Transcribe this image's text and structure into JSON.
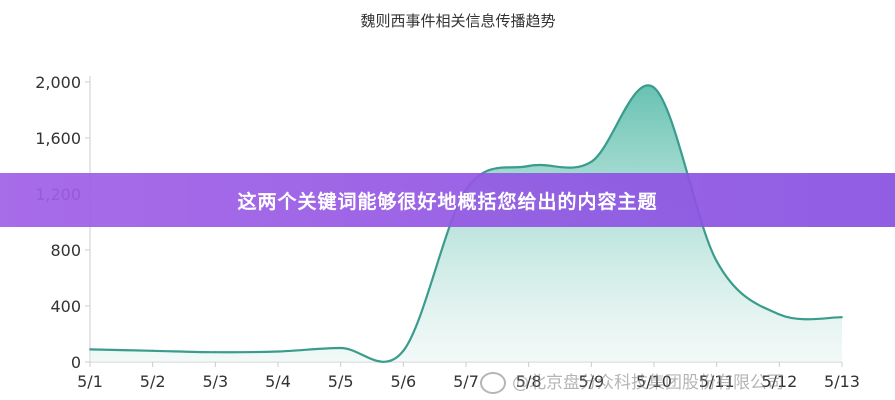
{
  "banner": {
    "text": "这两个关键词能够很好地概括您给出的内容主题"
  },
  "watermark": {
    "text": "@北京盘分众科技集团股份有限公司"
  },
  "chart_data": {
    "type": "area",
    "title": "魏则西事件相关信息传播趋势",
    "xlabel": "",
    "ylabel": "",
    "categories": [
      "5/1",
      "5/2",
      "5/3",
      "5/4",
      "5/5",
      "5/6",
      "5/7",
      "5/8",
      "5/9",
      "5/10",
      "5/11",
      "5/12",
      "5/13"
    ],
    "y_ticks": [
      "0",
      "400",
      "800",
      "1,200",
      "1,600",
      "2,000"
    ],
    "ylim": [
      0,
      2000
    ],
    "grid": false,
    "series": [
      {
        "values": [
          90,
          80,
          70,
          75,
          100,
          80,
          1230,
          1400,
          1430,
          1960,
          720,
          340,
          320
        ]
      }
    ],
    "colors": {
      "line": "#3a9c8c",
      "fill_top": "#5fbfae",
      "fill_bottom": "#e6f4f1",
      "axis": "#cccccc",
      "text": "#333333"
    }
  }
}
